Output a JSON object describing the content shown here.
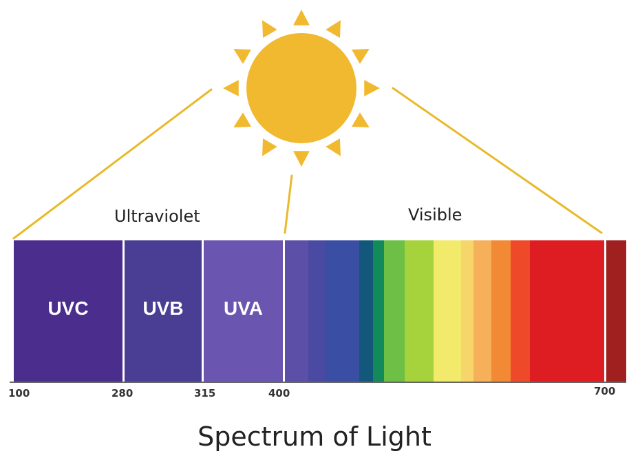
{
  "title": "Spectrum of Light",
  "regions": {
    "ultraviolet": "Ultraviolet",
    "visible": "Visible"
  },
  "uv_bands": [
    {
      "label": "UVC",
      "color": "#4a2d8c"
    },
    {
      "label": "UVB",
      "color": "#4a3d94"
    },
    {
      "label": "UVA",
      "color": "#6a55b0"
    }
  ],
  "ticks": [
    "100",
    "280",
    "315",
    "400",
    "700"
  ],
  "visible_band_colors": [
    "#5c4fa8",
    "#4b4aa3",
    "#3a4ea4",
    "#13587a",
    "#138a5a",
    "#6dbf45",
    "#a6d23c",
    "#f2ea6b",
    "#f6d66a",
    "#f7b05a",
    "#f28a35",
    "#ee4a2a",
    "#dd1d22",
    "#a01f1f"
  ],
  "colors": {
    "sun": "#f1b930",
    "beam_line": "#e9b92a",
    "divider": "#ffffff"
  }
}
